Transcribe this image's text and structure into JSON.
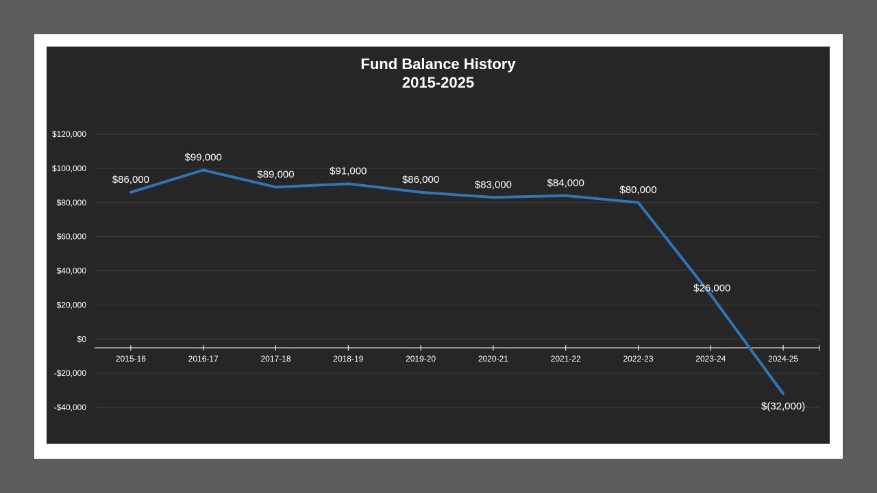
{
  "chart": {
    "title_line1": "Fund Balance History",
    "title_line2": "2015-2025"
  },
  "colors": {
    "page_background": "#5c5c5c",
    "frame": "#ffffff",
    "chart_background": "#262626",
    "gridline": "#3e3e3e",
    "axis": "#ffffff",
    "series_line": "#2e75b6",
    "text": "#ffffff"
  },
  "chart_data": {
    "type": "line",
    "title": "Fund Balance History 2015-2025",
    "xlabel": "",
    "ylabel": "",
    "categories": [
      "2015-16",
      "2016-17",
      "2017-18",
      "2018-19",
      "2019-20",
      "2020-21",
      "2021-22",
      "2022-23",
      "2023-24",
      "2024-25"
    ],
    "series": [
      {
        "name": "Fund Balance",
        "values": [
          86000,
          99000,
          89000,
          91000,
          86000,
          83000,
          84000,
          80000,
          26000,
          -32000
        ],
        "data_labels": [
          "$86,000",
          "$99,000",
          "$89,000",
          "$91,000",
          "$86,000",
          "$83,000",
          "$84,000",
          "$80,000",
          "$26,000",
          "$(32,000)"
        ]
      }
    ],
    "ylim": [
      -40000,
      120000
    ],
    "yticks": [
      120000,
      100000,
      80000,
      60000,
      40000,
      20000,
      0,
      -20000,
      -40000
    ],
    "ytick_labels": [
      "$120,000",
      "$100,000",
      "$80,000",
      "$60,000",
      "$40,000",
      "$20,000",
      "$0",
      "-$20,000",
      "-$40,000"
    ],
    "grid": true,
    "legend": "none"
  }
}
